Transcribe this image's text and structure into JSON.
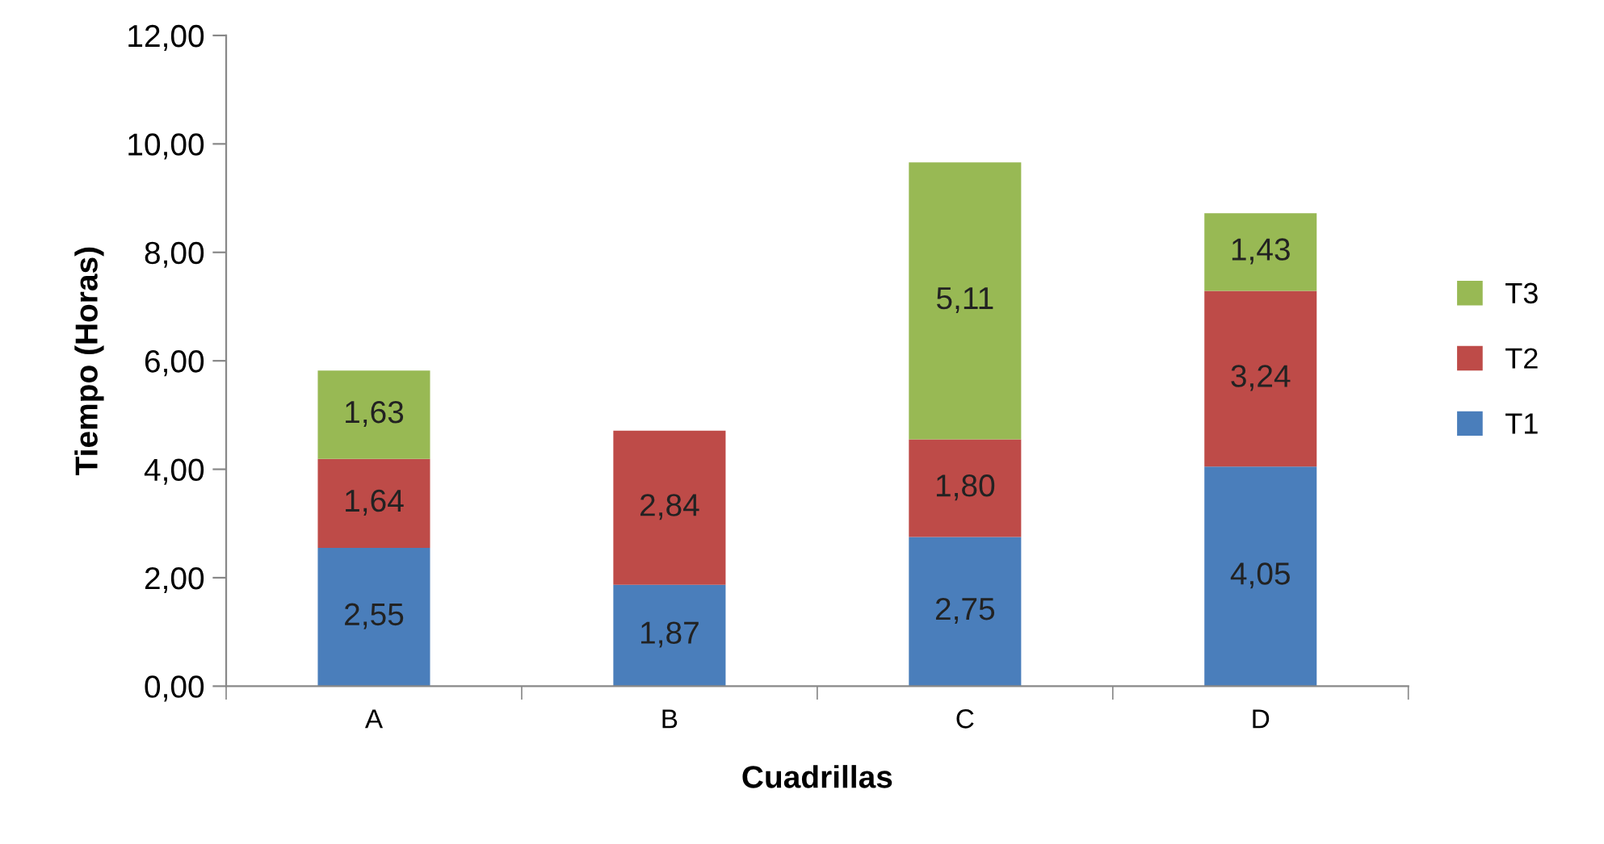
{
  "chart_data": {
    "type": "bar",
    "stacked": true,
    "xlabel": "Cuadrillas",
    "ylabel": "Tiempo (Horas)",
    "categories": [
      "A",
      "B",
      "C",
      "D"
    ],
    "series": [
      {
        "name": "T1",
        "color": "#4a7ebb",
        "values": [
          2.55,
          1.87,
          2.75,
          4.05
        ],
        "value_labels": [
          "2,55",
          "1,87",
          "2,75",
          "4,05"
        ]
      },
      {
        "name": "T2",
        "color": "#be4b48",
        "values": [
          1.64,
          2.84,
          1.8,
          3.24
        ],
        "value_labels": [
          "1,64",
          "2,84",
          "1,80",
          "3,24"
        ]
      },
      {
        "name": "T3",
        "color": "#98b954",
        "values": [
          1.63,
          null,
          5.11,
          1.43
        ],
        "value_labels": [
          "1,63",
          null,
          "5,11",
          "1,43"
        ]
      }
    ],
    "ylim": [
      0,
      12
    ],
    "yticks": [
      {
        "value": 0,
        "label": "0,00"
      },
      {
        "value": 2,
        "label": "2,00"
      },
      {
        "value": 4,
        "label": "4,00"
      },
      {
        "value": 6,
        "label": "6,00"
      },
      {
        "value": 8,
        "label": "8,00"
      },
      {
        "value": 10,
        "label": "10,00"
      },
      {
        "value": 12,
        "label": "12,00"
      }
    ],
    "legend": "right"
  }
}
